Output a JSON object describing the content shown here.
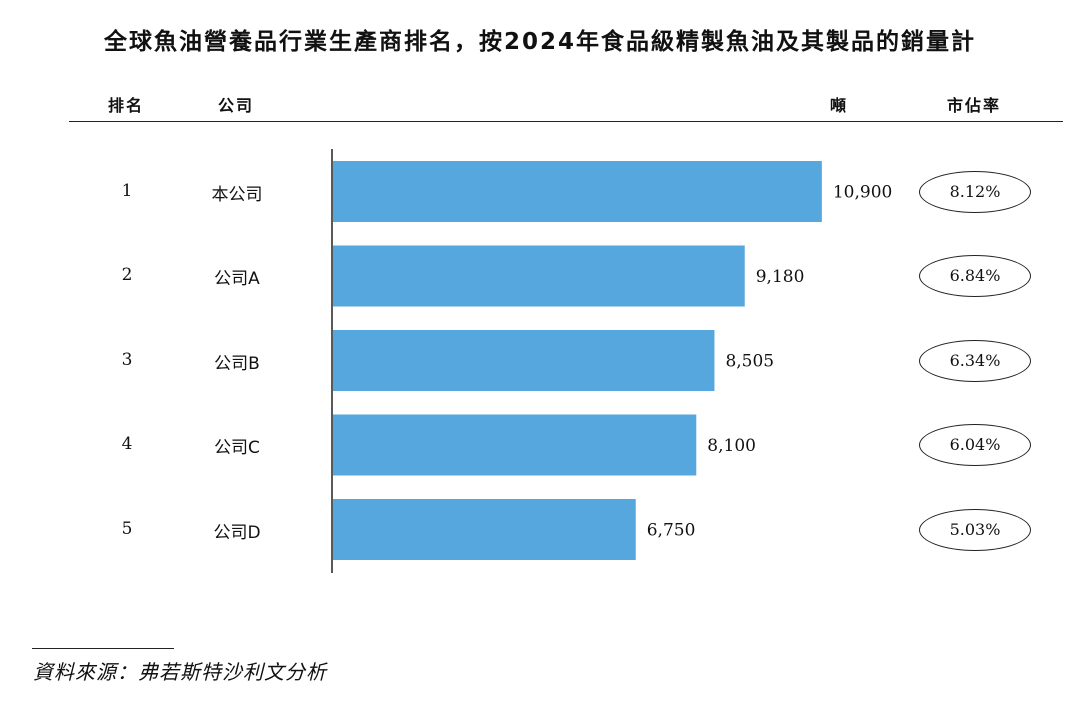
{
  "title": "全球魚油營養品行業生產商排名，按2024年食品級精製魚油及其製品的銷量計",
  "headers": {
    "rank": "排名",
    "company": "公司",
    "tonnes": "噸",
    "share": "市佔率"
  },
  "chart_data": {
    "type": "bar",
    "orientation": "horizontal",
    "title": "全球魚油營養品行業生產商排名，按2024年食品級精製魚油及其製品的銷量計",
    "categories": [
      "本公司",
      "公司A",
      "公司B",
      "公司C",
      "公司D"
    ],
    "ranks": [
      "1",
      "2",
      "3",
      "4",
      "5"
    ],
    "values": [
      10900,
      9180,
      8505,
      8100,
      6750
    ],
    "value_labels": [
      "10,900",
      "9,180",
      "8,505",
      "8,100",
      "6,750"
    ],
    "market_share": [
      "8.12%",
      "6.84%",
      "6.34%",
      "6.04%",
      "5.03%"
    ],
    "xlim": [
      0,
      12040
    ],
    "bar_color": "#56A7DE",
    "grid": false
  },
  "source": "資料來源：弗若斯特沙利文分析"
}
